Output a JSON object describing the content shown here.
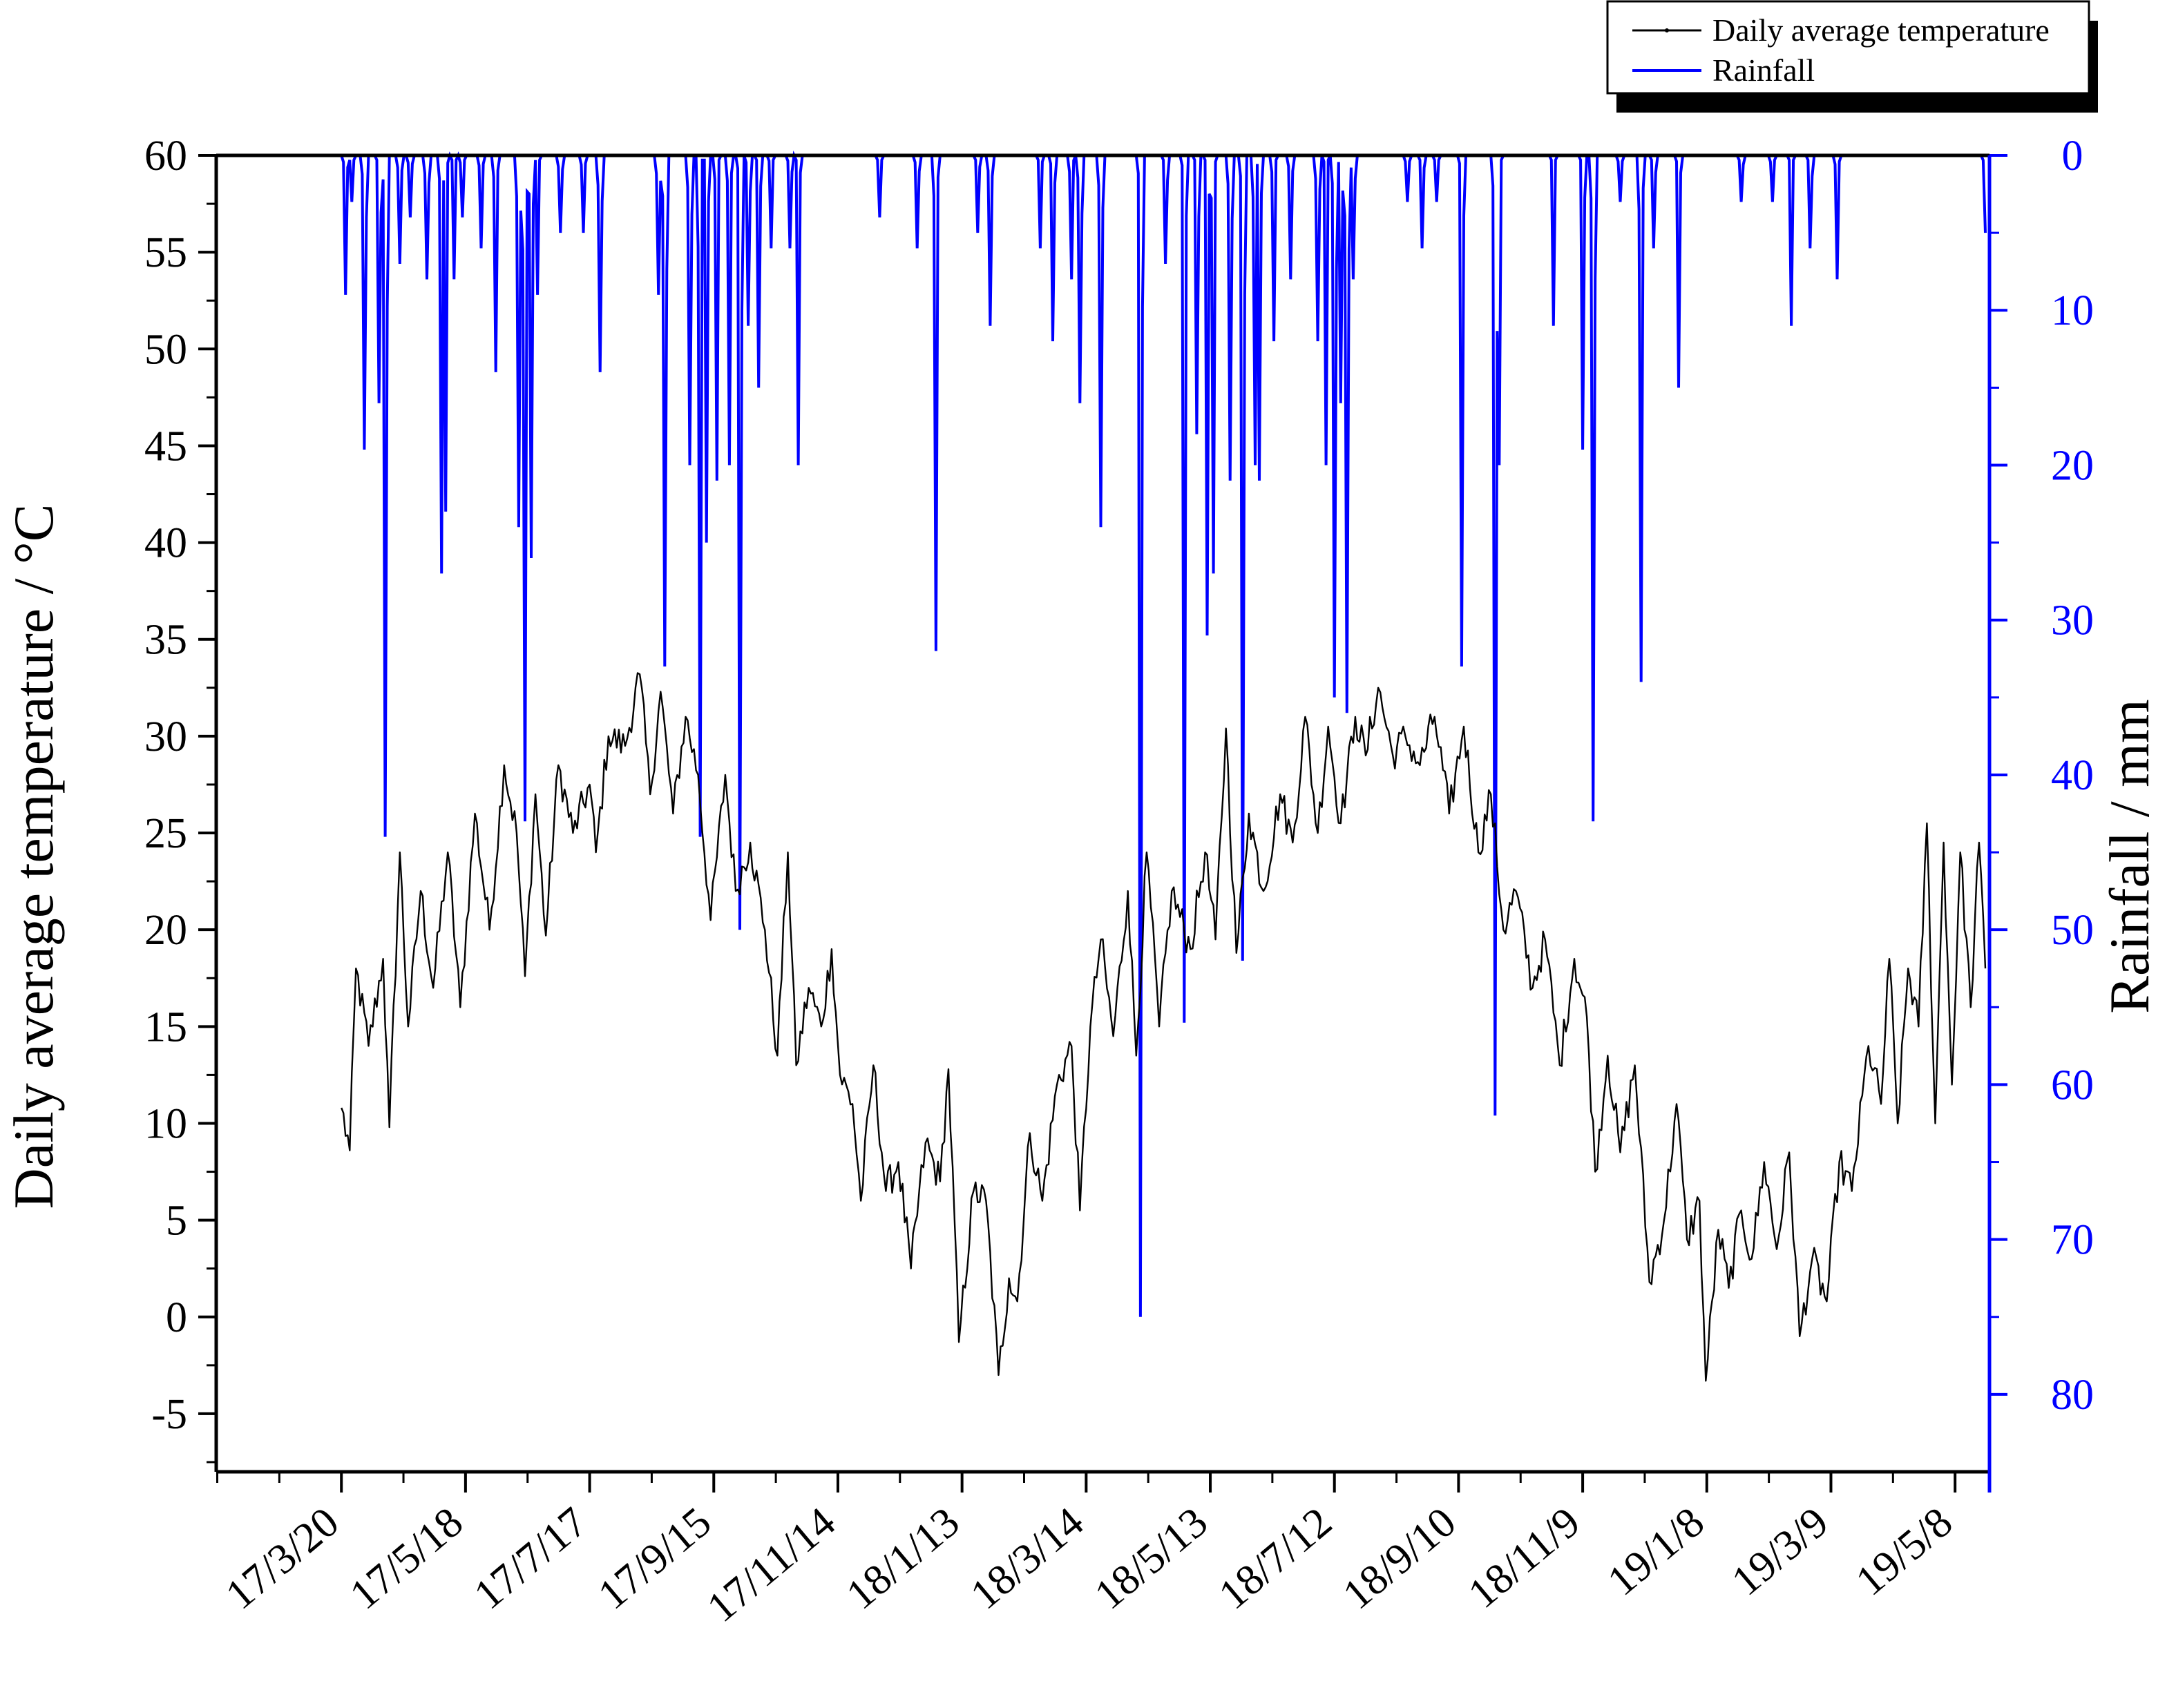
{
  "chart_data": {
    "type": "line",
    "title": "",
    "xlabel": "",
    "ylabel_left": "Daily average temperature / °C",
    "ylabel_right": "Rainfall / mm",
    "x_start_date": "2017-03-20",
    "x_end_date": "2019-05-17",
    "x_axis_start": "2017-01-19",
    "x_axis_end": "2019-05-19",
    "x_tick_labels": [
      "17/3/20",
      "17/5/18",
      "17/7/17",
      "17/9/15",
      "17/11/14",
      "18/1/13",
      "18/3/14",
      "18/5/13",
      "18/7/12",
      "18/9/10",
      "18/11/9",
      "19/1/8",
      "19/3/9",
      "19/5/8"
    ],
    "y_left": {
      "min": -8,
      "max": 60,
      "ticks": [
        -5,
        0,
        5,
        10,
        15,
        20,
        25,
        30,
        35,
        40,
        45,
        50,
        55,
        60
      ]
    },
    "y_right": {
      "min": 0,
      "max": 85,
      "inverted": true,
      "ticks": [
        0,
        10,
        20,
        30,
        40,
        50,
        60,
        70,
        80
      ]
    },
    "legend_position": "top-right, outside plot",
    "grid": false,
    "series": [
      {
        "name": "Daily average temperature",
        "axis": "left",
        "color": "#000000",
        "resolution": "daily",
        "keypoints": [
          [
            "2017-03-20",
            10.8
          ],
          [
            "2017-03-24",
            8.6
          ],
          [
            "2017-03-27",
            18.0
          ],
          [
            "2017-04-02",
            14.0
          ],
          [
            "2017-04-09",
            18.5
          ],
          [
            "2017-04-12",
            9.8
          ],
          [
            "2017-04-17",
            24.0
          ],
          [
            "2017-04-21",
            15.0
          ],
          [
            "2017-04-27",
            22.0
          ],
          [
            "2017-05-03",
            17.0
          ],
          [
            "2017-05-10",
            24.0
          ],
          [
            "2017-05-16",
            16.0
          ],
          [
            "2017-05-23",
            26.0
          ],
          [
            "2017-05-30",
            20.0
          ],
          [
            "2017-06-06",
            28.5
          ],
          [
            "2017-06-12",
            25.0
          ],
          [
            "2017-06-16",
            17.6
          ],
          [
            "2017-06-21",
            27.0
          ],
          [
            "2017-06-26",
            19.7
          ],
          [
            "2017-07-02",
            28.5
          ],
          [
            "2017-07-09",
            25.0
          ],
          [
            "2017-07-17",
            27.5
          ],
          [
            "2017-07-20",
            24.0
          ],
          [
            "2017-07-26",
            30.0
          ],
          [
            "2017-08-03",
            29.5
          ],
          [
            "2017-08-10",
            33.2
          ],
          [
            "2017-08-15",
            27.0
          ],
          [
            "2017-08-20",
            32.3
          ],
          [
            "2017-08-26",
            26.0
          ],
          [
            "2017-09-01",
            31.0
          ],
          [
            "2017-09-07",
            28.0
          ],
          [
            "2017-09-13",
            20.5
          ],
          [
            "2017-09-20",
            28.0
          ],
          [
            "2017-09-25",
            22.0
          ],
          [
            "2017-10-02",
            24.5
          ],
          [
            "2017-10-09",
            20.0
          ],
          [
            "2017-10-15",
            13.5
          ],
          [
            "2017-10-20",
            24.0
          ],
          [
            "2017-10-24",
            13.0
          ],
          [
            "2017-10-30",
            17.0
          ],
          [
            "2017-11-05",
            15.0
          ],
          [
            "2017-11-10",
            19.0
          ],
          [
            "2017-11-14",
            12.5
          ],
          [
            "2017-11-20",
            11.0
          ],
          [
            "2017-11-24",
            6.0
          ],
          [
            "2017-11-30",
            13.0
          ],
          [
            "2017-12-06",
            6.5
          ],
          [
            "2017-12-12",
            8.0
          ],
          [
            "2017-12-18",
            2.5
          ],
          [
            "2017-12-25",
            9.0
          ],
          [
            "2018-01-01",
            7.0
          ],
          [
            "2018-01-05",
            12.8
          ],
          [
            "2018-01-10",
            -1.3
          ],
          [
            "2018-01-17",
            6.5
          ],
          [
            "2018-01-23",
            6.0
          ],
          [
            "2018-01-29",
            -3.0
          ],
          [
            "2018-02-03",
            2.0
          ],
          [
            "2018-02-07",
            0.8
          ],
          [
            "2018-02-13",
            9.5
          ],
          [
            "2018-02-19",
            6.0
          ],
          [
            "2018-02-26",
            12.0
          ],
          [
            "2018-03-05",
            14.0
          ],
          [
            "2018-03-09",
            5.5
          ],
          [
            "2018-03-14",
            15.0
          ],
          [
            "2018-03-19",
            19.5
          ],
          [
            "2018-03-25",
            14.5
          ],
          [
            "2018-04-01",
            22.0
          ],
          [
            "2018-04-05",
            13.5
          ],
          [
            "2018-04-10",
            24.0
          ],
          [
            "2018-04-16",
            15.0
          ],
          [
            "2018-04-22",
            22.0
          ],
          [
            "2018-05-01",
            19.0
          ],
          [
            "2018-05-08",
            24.0
          ],
          [
            "2018-05-13",
            19.5
          ],
          [
            "2018-05-18",
            30.4
          ],
          [
            "2018-05-23",
            18.8
          ],
          [
            "2018-05-29",
            26.0
          ],
          [
            "2018-06-05",
            22.0
          ],
          [
            "2018-06-13",
            27.0
          ],
          [
            "2018-06-19",
            24.5
          ],
          [
            "2018-06-25",
            31.0
          ],
          [
            "2018-07-01",
            25.0
          ],
          [
            "2018-07-06",
            30.5
          ],
          [
            "2018-07-12",
            25.5
          ],
          [
            "2018-07-19",
            31.0
          ],
          [
            "2018-07-24",
            29.0
          ],
          [
            "2018-07-30",
            32.5
          ],
          [
            "2018-08-06",
            29.0
          ],
          [
            "2018-08-12",
            30.0
          ],
          [
            "2018-08-19",
            28.5
          ],
          [
            "2018-08-26",
            31.0
          ],
          [
            "2018-09-02",
            26.0
          ],
          [
            "2018-09-09",
            30.5
          ],
          [
            "2018-09-16",
            24.0
          ],
          [
            "2018-09-22",
            27.0
          ],
          [
            "2018-09-28",
            20.0
          ],
          [
            "2018-10-04",
            22.0
          ],
          [
            "2018-10-12",
            17.0
          ],
          [
            "2018-10-18",
            19.5
          ],
          [
            "2018-10-25",
            13.0
          ],
          [
            "2018-11-01",
            18.5
          ],
          [
            "2018-11-07",
            15.5
          ],
          [
            "2018-11-11",
            7.5
          ],
          [
            "2018-11-17",
            13.5
          ],
          [
            "2018-11-23",
            8.5
          ],
          [
            "2018-11-30",
            13.0
          ],
          [
            "2018-12-07",
            1.8
          ],
          [
            "2018-12-14",
            5.0
          ],
          [
            "2018-12-20",
            11.0
          ],
          [
            "2018-12-25",
            4.0
          ],
          [
            "2018-12-31",
            6.0
          ],
          [
            "2019-01-03",
            -3.3
          ],
          [
            "2019-01-09",
            4.5
          ],
          [
            "2019-01-14",
            1.5
          ],
          [
            "2019-01-20",
            5.5
          ],
          [
            "2019-01-25",
            3.0
          ],
          [
            "2019-01-31",
            8.0
          ],
          [
            "2019-02-06",
            3.5
          ],
          [
            "2019-02-12",
            8.5
          ],
          [
            "2019-02-17",
            -1.0
          ],
          [
            "2019-02-23",
            3.0
          ],
          [
            "2019-03-02",
            0.8
          ],
          [
            "2019-03-08",
            8.0
          ],
          [
            "2019-03-14",
            6.5
          ],
          [
            "2019-03-22",
            14.0
          ],
          [
            "2019-03-28",
            11.0
          ],
          [
            "2019-04-01",
            18.5
          ],
          [
            "2019-04-05",
            10.0
          ],
          [
            "2019-04-10",
            18.0
          ],
          [
            "2019-04-15",
            15.0
          ],
          [
            "2019-04-19",
            25.5
          ],
          [
            "2019-04-23",
            10.0
          ],
          [
            "2019-04-27",
            24.5
          ],
          [
            "2019-05-01",
            12.0
          ],
          [
            "2019-05-05",
            24.0
          ],
          [
            "2019-05-10",
            16.0
          ],
          [
            "2019-05-14",
            24.5
          ],
          [
            "2019-05-17",
            18.0
          ]
        ]
      },
      {
        "name": "Rainfall",
        "axis": "right",
        "color": "#0000ff",
        "resolution": "daily",
        "events": [
          [
            "2017-03-22",
            9
          ],
          [
            "2017-03-25",
            3
          ],
          [
            "2017-03-31",
            19
          ],
          [
            "2017-04-07",
            16
          ],
          [
            "2017-04-10",
            44
          ],
          [
            "2017-04-17",
            7
          ],
          [
            "2017-04-22",
            4
          ],
          [
            "2017-04-30",
            8
          ],
          [
            "2017-05-07",
            27
          ],
          [
            "2017-05-09",
            23
          ],
          [
            "2017-05-13",
            8
          ],
          [
            "2017-05-17",
            4
          ],
          [
            "2017-05-26",
            6
          ],
          [
            "2017-06-02",
            14
          ],
          [
            "2017-06-13",
            24
          ],
          [
            "2017-06-16",
            43
          ],
          [
            "2017-06-19",
            26
          ],
          [
            "2017-06-22",
            9
          ],
          [
            "2017-07-03",
            5
          ],
          [
            "2017-07-14",
            5
          ],
          [
            "2017-07-22",
            14
          ],
          [
            "2017-08-19",
            9
          ],
          [
            "2017-08-22",
            33
          ],
          [
            "2017-09-03",
            20
          ],
          [
            "2017-09-08",
            44
          ],
          [
            "2017-09-11",
            25
          ],
          [
            "2017-09-16",
            21
          ],
          [
            "2017-09-22",
            20
          ],
          [
            "2017-09-27",
            50
          ],
          [
            "2017-10-01",
            11
          ],
          [
            "2017-10-06",
            15
          ],
          [
            "2017-10-12",
            6
          ],
          [
            "2017-10-21",
            6
          ],
          [
            "2017-10-25",
            20
          ],
          [
            "2017-12-03",
            4
          ],
          [
            "2017-12-21",
            6
          ],
          [
            "2017-12-30",
            32
          ],
          [
            "2018-01-19",
            5
          ],
          [
            "2018-01-25",
            11
          ],
          [
            "2018-02-18",
            6
          ],
          [
            "2018-02-24",
            12
          ],
          [
            "2018-03-05",
            8
          ],
          [
            "2018-03-09",
            16
          ],
          [
            "2018-03-19",
            24
          ],
          [
            "2018-04-07",
            75
          ],
          [
            "2018-04-19",
            7
          ],
          [
            "2018-04-28",
            56
          ],
          [
            "2018-05-04",
            18
          ],
          [
            "2018-05-09",
            31
          ],
          [
            "2018-05-12",
            27
          ],
          [
            "2018-05-20",
            21
          ],
          [
            "2018-05-26",
            52
          ],
          [
            "2018-06-01",
            20
          ],
          [
            "2018-06-03",
            21
          ],
          [
            "2018-06-10",
            12
          ],
          [
            "2018-06-18",
            8
          ],
          [
            "2018-07-01",
            12
          ],
          [
            "2018-07-05",
            20
          ],
          [
            "2018-07-09",
            35
          ],
          [
            "2018-07-12",
            16
          ],
          [
            "2018-07-15",
            36
          ],
          [
            "2018-07-18",
            8
          ],
          [
            "2018-08-13",
            3
          ],
          [
            "2018-08-20",
            6
          ],
          [
            "2018-08-27",
            3
          ],
          [
            "2018-09-08",
            33
          ],
          [
            "2018-09-24",
            62
          ],
          [
            "2018-09-26",
            20
          ],
          [
            "2018-10-22",
            11
          ],
          [
            "2018-11-05",
            19
          ],
          [
            "2018-11-10",
            43
          ],
          [
            "2018-11-23",
            3
          ],
          [
            "2018-12-03",
            34
          ],
          [
            "2018-12-09",
            6
          ],
          [
            "2018-12-21",
            15
          ],
          [
            "2019-01-20",
            3
          ],
          [
            "2019-02-04",
            3
          ],
          [
            "2019-02-13",
            11
          ],
          [
            "2019-02-22",
            6
          ],
          [
            "2019-03-07",
            8
          ],
          [
            "2019-05-17",
            5
          ]
        ]
      }
    ]
  }
}
